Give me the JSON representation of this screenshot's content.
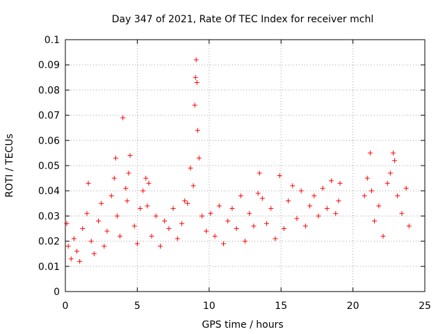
{
  "chart_data": {
    "type": "scatter",
    "title": "Day 347 of 2021, Rate Of TEC Index for receiver mchl",
    "xlabel": "GPS time / hours",
    "ylabel": "ROTI / TECUs",
    "xlim": [
      0,
      25
    ],
    "ylim": [
      0,
      0.1
    ],
    "xticks": [
      "0",
      "5",
      "10",
      "15",
      "20",
      "25"
    ],
    "yticks": [
      "0",
      "0.01",
      "0.02",
      "0.03",
      "0.04",
      "0.05",
      "0.06",
      "0.07",
      "0.08",
      "0.09",
      "0.1"
    ],
    "grid": true,
    "marker": "plus",
    "color": "#ff0000",
    "data_gap_hours": [
      19.2,
      20.8
    ],
    "series": [
      {
        "x": [
          0.1,
          0.2,
          0.4,
          0.6,
          0.8,
          1.0,
          1.2,
          1.5,
          1.6,
          1.8,
          2.0,
          2.3,
          2.5,
          2.7,
          2.9,
          3.2,
          3.4,
          3.5,
          3.6,
          3.8,
          4.0,
          4.2,
          4.3,
          4.4,
          4.5,
          4.8,
          5.0,
          5.2,
          5.4,
          5.6,
          5.7,
          5.8,
          6.0,
          6.3,
          6.6,
          6.9,
          7.2,
          7.5,
          7.8,
          8.1,
          8.3,
          8.5,
          8.7,
          8.9,
          9.0,
          9.05,
          9.1,
          9.15,
          9.2,
          9.3,
          9.5,
          9.8,
          10.1,
          10.4,
          10.7,
          11.0,
          11.3,
          11.6,
          11.9,
          12.2,
          12.5,
          12.8,
          13.1,
          13.4,
          13.5,
          13.7,
          14.0,
          14.3,
          14.6,
          14.9,
          15.2,
          15.5,
          15.8,
          16.1,
          16.4,
          16.7,
          17.0,
          17.3,
          17.6,
          17.9,
          18.2,
          18.5,
          18.8,
          19.0,
          19.1,
          20.8,
          21.0,
          21.2,
          21.3,
          21.5,
          21.8,
          22.1,
          22.4,
          22.6,
          22.8,
          22.9,
          23.1,
          23.4,
          23.7,
          23.9
        ],
        "y": [
          0.027,
          0.018,
          0.013,
          0.021,
          0.016,
          0.012,
          0.025,
          0.031,
          0.043,
          0.02,
          0.015,
          0.028,
          0.035,
          0.018,
          0.024,
          0.038,
          0.045,
          0.053,
          0.03,
          0.022,
          0.069,
          0.041,
          0.036,
          0.047,
          0.054,
          0.026,
          0.019,
          0.033,
          0.04,
          0.045,
          0.034,
          0.043,
          0.022,
          0.03,
          0.018,
          0.028,
          0.025,
          0.033,
          0.021,
          0.027,
          0.036,
          0.035,
          0.049,
          0.042,
          0.074,
          0.085,
          0.092,
          0.083,
          0.064,
          0.053,
          0.03,
          0.024,
          0.031,
          0.022,
          0.034,
          0.019,
          0.028,
          0.033,
          0.025,
          0.038,
          0.02,
          0.031,
          0.026,
          0.039,
          0.047,
          0.037,
          0.027,
          0.033,
          0.021,
          0.046,
          0.025,
          0.036,
          0.042,
          0.029,
          0.04,
          0.026,
          0.034,
          0.038,
          0.03,
          0.041,
          0.033,
          0.044,
          0.031,
          0.036,
          0.043,
          0.038,
          0.045,
          0.055,
          0.04,
          0.028,
          0.034,
          0.022,
          0.043,
          0.047,
          0.055,
          0.052,
          0.038,
          0.031,
          0.041,
          0.026
        ]
      }
    ]
  }
}
